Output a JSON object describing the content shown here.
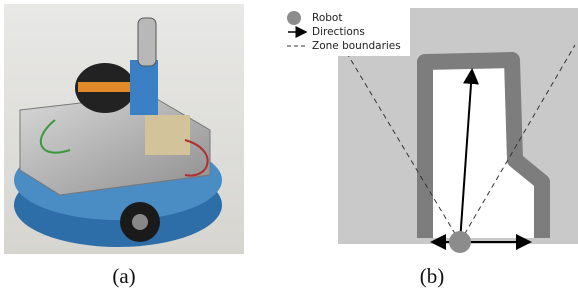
{
  "legend": {
    "items": [
      "Robot",
      "Directions",
      "Zone boundaries"
    ]
  },
  "captions": [
    "(a)",
    "(b)"
  ]
}
